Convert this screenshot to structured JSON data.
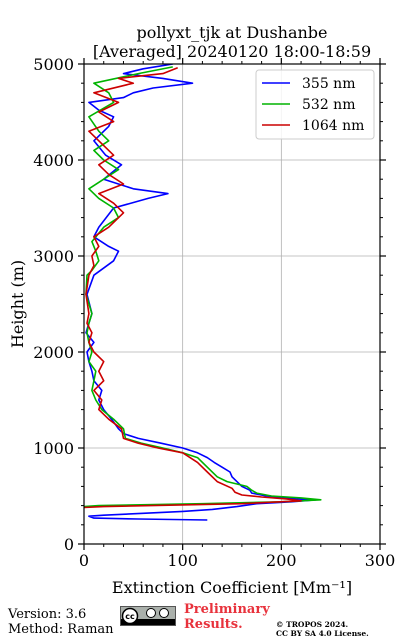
{
  "chart_data": {
    "type": "line",
    "title": "pollyxt_tjk at Dushanbe",
    "subtitle": "[Averaged] 20240120 18:00-18:59",
    "xlabel": "Extinction Coefficient [Mm⁻¹]",
    "ylabel": "Height (m)",
    "xlim": [
      0,
      300
    ],
    "ylim": [
      0,
      5000
    ],
    "xticks": [
      0,
      100,
      200,
      300
    ],
    "yticks": [
      0,
      1000,
      2000,
      3000,
      4000,
      5000
    ],
    "grid": true,
    "legend_position": "top-right",
    "series": [
      {
        "name": "355 nm",
        "color": "#0000ff",
        "points": [
          [
            125,
            250
          ],
          [
            55,
            260
          ],
          [
            10,
            270
          ],
          [
            5,
            290
          ],
          [
            20,
            300
          ],
          [
            60,
            320
          ],
          [
            100,
            340
          ],
          [
            130,
            360
          ],
          [
            155,
            390
          ],
          [
            175,
            420
          ],
          [
            210,
            440
          ],
          [
            235,
            460
          ],
          [
            215,
            470
          ],
          [
            185,
            500
          ],
          [
            170,
            530
          ],
          [
            168,
            560
          ],
          [
            160,
            600
          ],
          [
            155,
            650
          ],
          [
            150,
            700
          ],
          [
            148,
            750
          ],
          [
            140,
            800
          ],
          [
            132,
            850
          ],
          [
            125,
            900
          ],
          [
            115,
            950
          ],
          [
            100,
            1000
          ],
          [
            78,
            1050
          ],
          [
            55,
            1100
          ],
          [
            40,
            1150
          ],
          [
            35,
            1200
          ],
          [
            28,
            1300
          ],
          [
            20,
            1400
          ],
          [
            15,
            1500
          ],
          [
            18,
            1600
          ],
          [
            10,
            1700
          ],
          [
            8,
            1800
          ],
          [
            5,
            1900
          ],
          [
            3,
            2000
          ],
          [
            10,
            2100
          ],
          [
            2,
            2200
          ],
          [
            5,
            2300
          ],
          [
            8,
            2400
          ],
          [
            3,
            2600
          ],
          [
            10,
            2800
          ],
          [
            30,
            2950
          ],
          [
            35,
            3050
          ],
          [
            25,
            3100
          ],
          [
            10,
            3200
          ],
          [
            15,
            3300
          ],
          [
            30,
            3500
          ],
          [
            65,
            3600
          ],
          [
            85,
            3650
          ],
          [
            50,
            3700
          ],
          [
            20,
            3800
          ],
          [
            38,
            3950
          ],
          [
            22,
            4050
          ],
          [
            10,
            4200
          ],
          [
            25,
            4350
          ],
          [
            30,
            4450
          ],
          [
            15,
            4520
          ],
          [
            5,
            4600
          ],
          [
            40,
            4650
          ],
          [
            50,
            4700
          ],
          [
            70,
            4750
          ],
          [
            110,
            4800
          ],
          [
            80,
            4850
          ],
          [
            40,
            4900
          ],
          [
            60,
            4950
          ],
          [
            90,
            5000
          ]
        ]
      },
      {
        "name": "532 nm",
        "color": "#00b400",
        "points": [
          [
            0,
            390
          ],
          [
            15,
            400
          ],
          [
            120,
            420
          ],
          [
            200,
            440
          ],
          [
            240,
            460
          ],
          [
            220,
            480
          ],
          [
            190,
            500
          ],
          [
            175,
            530
          ],
          [
            170,
            560
          ],
          [
            165,
            600
          ],
          [
            145,
            650
          ],
          [
            135,
            700
          ],
          [
            125,
            800
          ],
          [
            115,
            900
          ],
          [
            100,
            950
          ],
          [
            80,
            1000
          ],
          [
            58,
            1050
          ],
          [
            42,
            1100
          ],
          [
            40,
            1200
          ],
          [
            30,
            1300
          ],
          [
            18,
            1400
          ],
          [
            12,
            1500
          ],
          [
            8,
            1600
          ],
          [
            10,
            1700
          ],
          [
            12,
            1800
          ],
          [
            5,
            1900
          ],
          [
            8,
            2000
          ],
          [
            5,
            2100
          ],
          [
            3,
            2200
          ],
          [
            5,
            2300
          ],
          [
            8,
            2400
          ],
          [
            2,
            2600
          ],
          [
            3,
            2800
          ],
          [
            8,
            2850
          ],
          [
            15,
            2950
          ],
          [
            12,
            3050
          ],
          [
            8,
            3150
          ],
          [
            20,
            3300
          ],
          [
            35,
            3400
          ],
          [
            30,
            3500
          ],
          [
            15,
            3600
          ],
          [
            5,
            3700
          ],
          [
            20,
            3800
          ],
          [
            35,
            3900
          ],
          [
            20,
            4000
          ],
          [
            10,
            4100
          ],
          [
            25,
            4200
          ],
          [
            15,
            4300
          ],
          [
            5,
            4450
          ],
          [
            30,
            4600
          ],
          [
            25,
            4700
          ],
          [
            10,
            4800
          ],
          [
            55,
            4900
          ],
          [
            90,
            4970
          ]
        ]
      },
      {
        "name": "1064 nm",
        "color": "#cc0000",
        "points": [
          [
            0,
            380
          ],
          [
            20,
            390
          ],
          [
            160,
            420
          ],
          [
            220,
            450
          ],
          [
            205,
            470
          ],
          [
            180,
            490
          ],
          [
            160,
            510
          ],
          [
            153,
            540
          ],
          [
            150,
            580
          ],
          [
            135,
            650
          ],
          [
            125,
            750
          ],
          [
            115,
            850
          ],
          [
            100,
            950
          ],
          [
            75,
            1000
          ],
          [
            55,
            1050
          ],
          [
            40,
            1100
          ],
          [
            38,
            1200
          ],
          [
            25,
            1300
          ],
          [
            15,
            1400
          ],
          [
            18,
            1500
          ],
          [
            10,
            1600
          ],
          [
            20,
            1700
          ],
          [
            15,
            1800
          ],
          [
            20,
            1900
          ],
          [
            10,
            2000
          ],
          [
            5,
            2100
          ],
          [
            8,
            2200
          ],
          [
            3,
            2300
          ],
          [
            5,
            2400
          ],
          [
            2,
            2600
          ],
          [
            5,
            2800
          ],
          [
            10,
            2900
          ],
          [
            8,
            3000
          ],
          [
            15,
            3100
          ],
          [
            10,
            3200
          ],
          [
            25,
            3300
          ],
          [
            40,
            3450
          ],
          [
            30,
            3550
          ],
          [
            15,
            3650
          ],
          [
            40,
            3750
          ],
          [
            25,
            3850
          ],
          [
            15,
            3950
          ],
          [
            30,
            4050
          ],
          [
            20,
            4150
          ],
          [
            5,
            4300
          ],
          [
            30,
            4400
          ],
          [
            15,
            4500
          ],
          [
            35,
            4600
          ],
          [
            10,
            4700
          ],
          [
            50,
            4800
          ],
          [
            35,
            4850
          ],
          [
            80,
            4900
          ],
          [
            95,
            4960
          ]
        ]
      }
    ]
  },
  "footer": {
    "version": "Version: 3.6",
    "method": "Method: Raman",
    "preliminary_line1": "Preliminary",
    "preliminary_line2": "Results.",
    "copyright_line1": "© TROPOS 2024.",
    "copyright_line2": "CC BY SA 4.0 License."
  },
  "badge": {
    "icon": "cc-by-sa-icon",
    "text": "cc"
  }
}
